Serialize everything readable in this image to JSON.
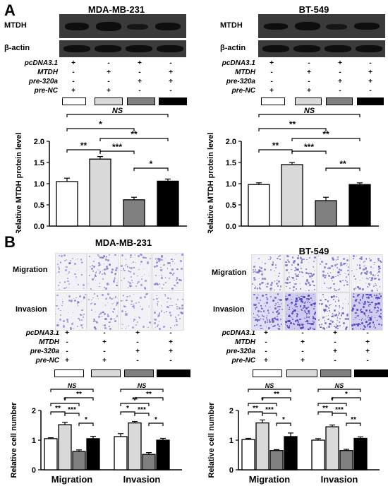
{
  "panel_a_letter": "A",
  "panel_b_letter": "B",
  "left_cell": "MDA-MB-231",
  "right_cell": "BT-549",
  "blot_labels": {
    "target": "MTDH",
    "control": "β-actin"
  },
  "conditions": [
    "pcDNA3.1",
    "MTDH",
    "pre-320a",
    "pre-NC"
  ],
  "sign_matrix": [
    [
      "+",
      "-",
      "+",
      "-"
    ],
    [
      "-",
      "+",
      "-",
      "+"
    ],
    [
      "-",
      "-",
      "+",
      "+"
    ],
    [
      "+",
      "+",
      "-",
      "-"
    ]
  ],
  "colors": {
    "g1": "#ffffff",
    "g2": "#d9d9d9",
    "g3": "#808080",
    "g4": "#000000"
  },
  "assay_rows": [
    "Migration",
    "Invasion"
  ],
  "chart_data": [
    {
      "type": "bar",
      "cell": "MDA-MB-231",
      "ylabel": "Relative MTDH protein level",
      "ylim": [
        0,
        2.0
      ],
      "yticks": [
        "0.0",
        "0.5",
        "1.0",
        "1.5",
        "2.0"
      ],
      "values": [
        1.05,
        1.58,
        0.62,
        1.06
      ],
      "errors": [
        0.08,
        0.06,
        0.06,
        0.05
      ],
      "sig": [
        {
          "from": 0,
          "to": 3,
          "label": "NS"
        },
        {
          "from": 0,
          "to": 2,
          "label": "*"
        },
        {
          "from": 1,
          "to": 3,
          "label": "**"
        },
        {
          "from": 0,
          "to": 1,
          "label": "**"
        },
        {
          "from": 1,
          "to": 2,
          "label": "***"
        },
        {
          "from": 2,
          "to": 3,
          "label": "*"
        }
      ]
    },
    {
      "type": "bar",
      "cell": "BT-549",
      "ylabel": "Relative MTDH protein level",
      "ylim": [
        0,
        2.0
      ],
      "yticks": [
        "0.0",
        "0.5",
        "1.0",
        "1.5",
        "2.0"
      ],
      "values": [
        0.98,
        1.45,
        0.6,
        0.98
      ],
      "errors": [
        0.04,
        0.05,
        0.08,
        0.04
      ],
      "sig": [
        {
          "from": 0,
          "to": 3,
          "label": "NS"
        },
        {
          "from": 0,
          "to": 2,
          "label": "**"
        },
        {
          "from": 1,
          "to": 3,
          "label": "**"
        },
        {
          "from": 0,
          "to": 1,
          "label": "**"
        },
        {
          "from": 1,
          "to": 2,
          "label": "***"
        },
        {
          "from": 2,
          "to": 3,
          "label": "**"
        }
      ]
    },
    {
      "type": "bar",
      "cell": "MDA-MB-231",
      "ylabel": "Relative cell number",
      "ylim": [
        0,
        2
      ],
      "yticks": [
        "0",
        "1",
        "2"
      ],
      "categories": [
        "Migration",
        "Invasion"
      ],
      "groups": [
        {
          "values": [
            1.05,
            1.52,
            0.62,
            1.05
          ],
          "errors": [
            0.03,
            0.08,
            0.05,
            0.08
          ]
        },
        {
          "values": [
            1.12,
            1.58,
            0.52,
            1.0
          ],
          "errors": [
            0.1,
            0.05,
            0.06,
            0.06
          ]
        }
      ],
      "sig_groups": [
        [
          {
            "from": 0,
            "to": 3,
            "label": "NS"
          },
          {
            "from": 1,
            "to": 3,
            "label": "**"
          },
          {
            "from": 0,
            "to": 2,
            "label": "*"
          },
          {
            "from": 0,
            "to": 1,
            "label": "**"
          },
          {
            "from": 1,
            "to": 2,
            "label": "***"
          },
          {
            "from": 2,
            "to": 3,
            "label": "*"
          }
        ],
        [
          {
            "from": 0,
            "to": 3,
            "label": "NS"
          },
          {
            "from": 1,
            "to": 3,
            "label": "**"
          },
          {
            "from": 0,
            "to": 2,
            "label": "**"
          },
          {
            "from": 0,
            "to": 1,
            "label": "*"
          },
          {
            "from": 1,
            "to": 2,
            "label": "***"
          },
          {
            "from": 2,
            "to": 3,
            "label": "*"
          }
        ]
      ]
    },
    {
      "type": "bar",
      "cell": "BT-549",
      "ylabel": "Relative cell number",
      "ylim": [
        0,
        2
      ],
      "yticks": [
        "0",
        "1",
        "2"
      ],
      "categories": [
        "Migration",
        "Invasion"
      ],
      "groups": [
        {
          "values": [
            1.02,
            1.58,
            0.65,
            1.12
          ],
          "errors": [
            0.04,
            0.1,
            0.03,
            0.12
          ]
        },
        {
          "values": [
            1.0,
            1.45,
            0.65,
            1.06
          ],
          "errors": [
            0.05,
            0.06,
            0.04,
            0.05
          ]
        }
      ],
      "sig_groups": [
        [
          {
            "from": 0,
            "to": 3,
            "label": "NS"
          },
          {
            "from": 1,
            "to": 3,
            "label": "**"
          },
          {
            "from": 0,
            "to": 2,
            "label": "*"
          },
          {
            "from": 0,
            "to": 1,
            "label": "**"
          },
          {
            "from": 1,
            "to": 2,
            "label": "***"
          },
          {
            "from": 2,
            "to": 3,
            "label": "*"
          }
        ],
        [
          {
            "from": 0,
            "to": 3,
            "label": "NS"
          },
          {
            "from": 1,
            "to": 3,
            "label": "*"
          },
          {
            "from": 0,
            "to": 2,
            "label": "*"
          },
          {
            "from": 0,
            "to": 1,
            "label": "**"
          },
          {
            "from": 1,
            "to": 2,
            "label": "***"
          },
          {
            "from": 2,
            "to": 3,
            "label": "**"
          }
        ]
      ]
    }
  ]
}
